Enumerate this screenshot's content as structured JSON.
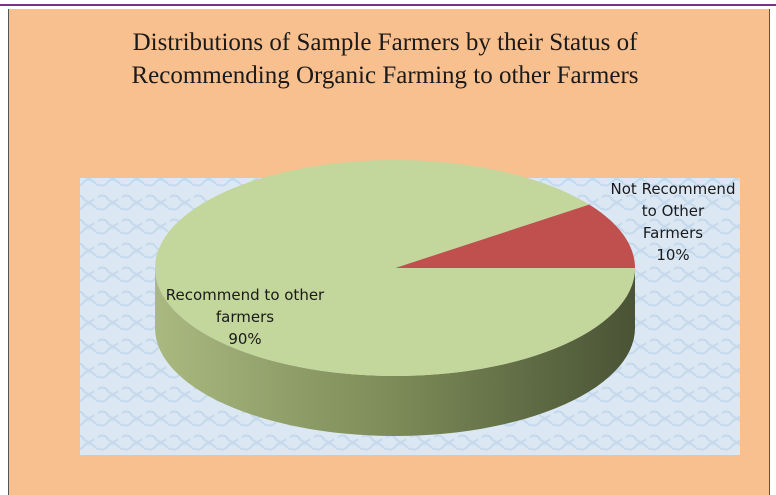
{
  "chart_data": {
    "type": "pie3d",
    "title": "Distributions of Sample Farmers by their Status of Recommending Organic Farming to other Farmers",
    "categories": [
      "Not Recommend to Other Farmers",
      "Recommend to other farmers"
    ],
    "values": [
      10,
      90
    ],
    "value_labels": [
      "10%",
      "90%"
    ],
    "colors": [
      "#C0504D",
      "#C3D69B"
    ]
  }
}
